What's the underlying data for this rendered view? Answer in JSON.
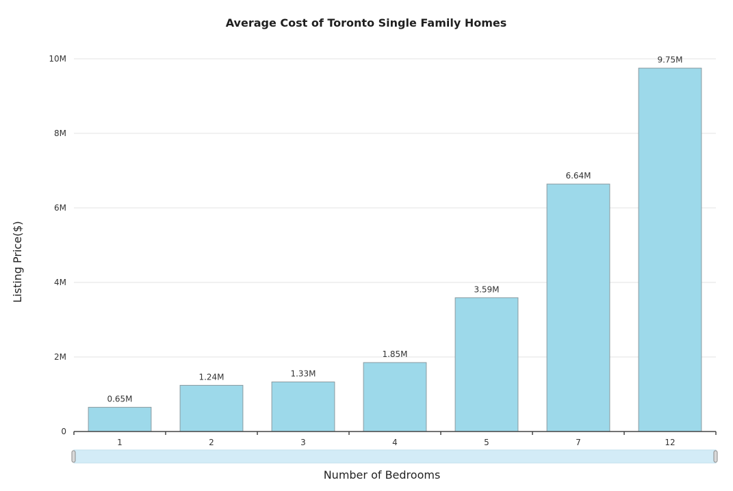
{
  "chart_data": {
    "type": "bar",
    "title": "Average Cost of Toronto Single Family Homes",
    "xlabel": "Number of Bedrooms",
    "ylabel": "Listing Price($)",
    "categories": [
      "1",
      "2",
      "3",
      "4",
      "5",
      "7",
      "12"
    ],
    "values": [
      650000,
      1240000,
      1330000,
      1850000,
      3590000,
      6640000,
      9750000
    ],
    "data_labels": [
      "0.65M",
      "1.24M",
      "1.33M",
      "1.85M",
      "3.59M",
      "6.64M",
      "9.75M"
    ],
    "ylim": [
      0,
      10000000
    ],
    "yticks": [
      0,
      2000000,
      4000000,
      6000000,
      8000000,
      10000000
    ],
    "ytick_labels": [
      "0",
      "2M",
      "4M",
      "6M",
      "8M",
      "10M"
    ],
    "grid": true,
    "legend": "none",
    "bar_color": "#9dd9ea",
    "scrollbar": true
  }
}
